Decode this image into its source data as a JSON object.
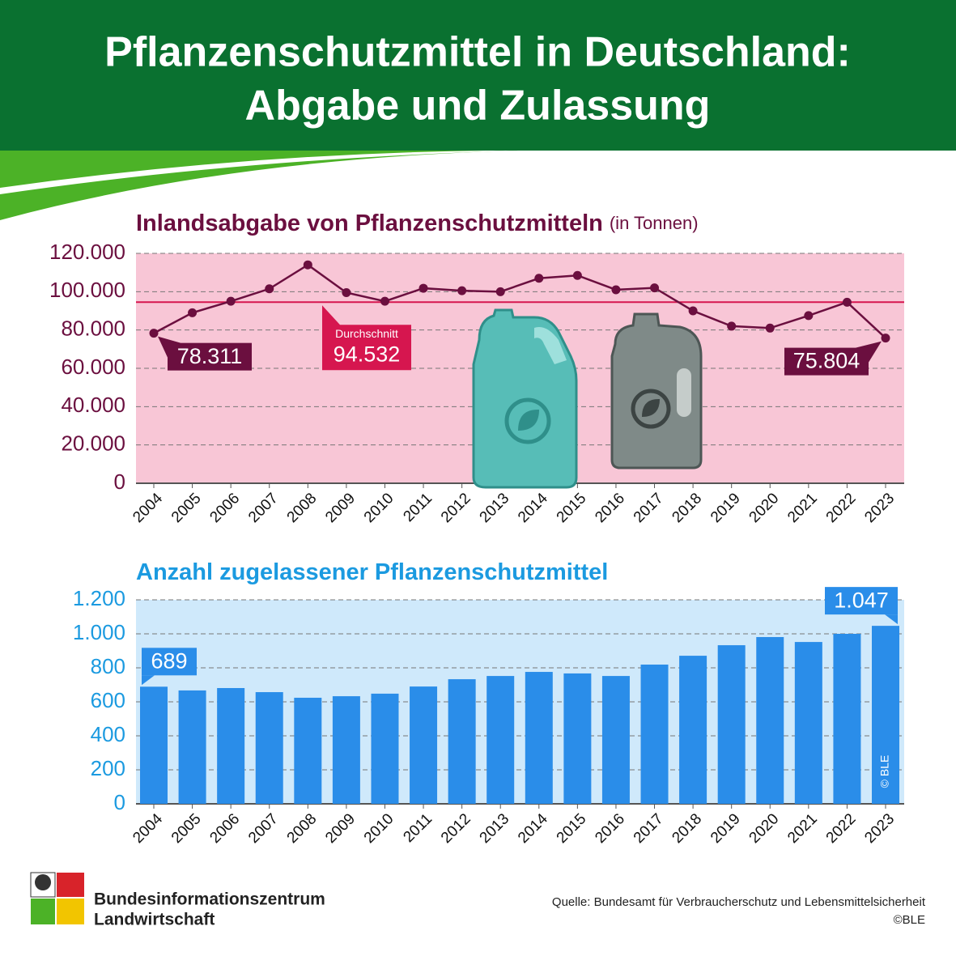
{
  "header": {
    "title_lines": [
      "Pflanzenschutzmittel in Deutschland:",
      "Abgabe und Zulassung"
    ]
  },
  "chart_data": [
    {
      "type": "line",
      "title": "Inlandsabgabe von Pflanzenschutzmitteln",
      "unit": "(in Tonnen)",
      "categories": [
        "2004",
        "2005",
        "2006",
        "2007",
        "2008",
        "2009",
        "2010",
        "2011",
        "2012",
        "2013",
        "2014",
        "2015",
        "2016",
        "2017",
        "2018",
        "2019",
        "2020",
        "2021",
        "2022",
        "2023"
      ],
      "values": [
        78311,
        89000,
        95000,
        101500,
        114000,
        99500,
        95000,
        101800,
        100500,
        100000,
        107000,
        108500,
        101000,
        102000,
        90000,
        82000,
        81000,
        87500,
        94500,
        75804
      ],
      "value_labels": [
        "78.311",
        null,
        null,
        null,
        null,
        null,
        null,
        null,
        null,
        null,
        null,
        null,
        null,
        null,
        null,
        null,
        null,
        null,
        null,
        "75.804"
      ],
      "average": {
        "label": "Durchschnitt",
        "value": 94532,
        "value_label": "94.532",
        "color": "#d6164f"
      },
      "color": "#6b0f3f",
      "title_color": "#6b0f3f",
      "background": "#f8c6d6",
      "ylim": [
        0,
        120000
      ],
      "yticks": [
        0,
        {
          "value": 20000,
          "label": "20.000"
        },
        {
          "value": 40000,
          "label": "40.000"
        },
        {
          "value": 60000,
          "label": "60.000"
        },
        {
          "value": 80000,
          "label": "80.000"
        },
        {
          "value": 100000,
          "label": "100.000"
        },
        {
          "value": 120000,
          "label": "120.000"
        }
      ],
      "grid": true
    },
    {
      "type": "bar",
      "title": "Anzahl zugelassener Pflanzenschutzmittel",
      "categories": [
        "2004",
        "2005",
        "2006",
        "2007",
        "2008",
        "2009",
        "2010",
        "2011",
        "2012",
        "2013",
        "2014",
        "2015",
        "2016",
        "2017",
        "2018",
        "2019",
        "2020",
        "2021",
        "2022",
        "2023"
      ],
      "values": [
        689,
        667,
        681,
        657,
        624,
        633,
        648,
        690,
        733,
        752,
        776,
        767,
        752,
        819,
        871,
        933,
        981,
        952,
        1000,
        1047
      ],
      "value_labels": [
        "689",
        null,
        null,
        null,
        null,
        null,
        null,
        null,
        null,
        null,
        null,
        null,
        null,
        null,
        null,
        null,
        null,
        null,
        null,
        "1.047"
      ],
      "annotation": "© BLE",
      "color": "#2a8de9",
      "title_color": "#1b9ae0",
      "background": "#cfe9fb",
      "ylim": [
        0,
        1200
      ],
      "yticks": [
        0,
        200,
        400,
        600,
        800,
        {
          "value": 1000,
          "label": "1.000"
        },
        {
          "value": 1200,
          "label": "1.200"
        }
      ],
      "grid": true
    }
  ],
  "footer": {
    "org_lines": [
      "Bundesinformationszentrum",
      "Landwirtschaft"
    ],
    "source": "Quelle: Bundesamt für Verbraucherschutz und Lebensmittelsicherheit",
    "copyright": "©BLE"
  }
}
